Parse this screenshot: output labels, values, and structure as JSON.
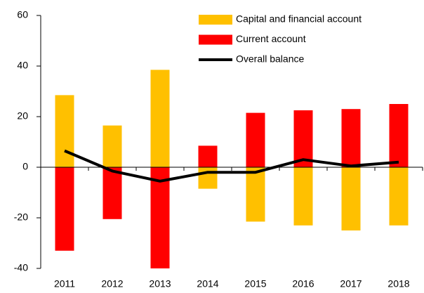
{
  "chart_data": {
    "type": "bar",
    "categories": [
      "2011",
      "2012",
      "2013",
      "2014",
      "2015",
      "2016",
      "2017",
      "2018"
    ],
    "series": [
      {
        "name": "Capital and financial account",
        "color": "#ffc000",
        "values": [
          28.5,
          16.5,
          38.5,
          -8.5,
          -21.5,
          -23,
          -25,
          -23
        ]
      },
      {
        "name": "Current account",
        "color": "#ff0000",
        "values": [
          -33,
          -20.5,
          -40,
          8.5,
          21.5,
          22.5,
          23,
          25
        ]
      },
      {
        "name": "Overall balance",
        "color": "#000000",
        "type": "line",
        "values": [
          6.5,
          -1.5,
          -5.5,
          -2,
          -2,
          3,
          0.5,
          2
        ]
      }
    ],
    "ylim": [
      -40,
      60
    ],
    "yticks": [
      -40,
      -20,
      0,
      20,
      40,
      60
    ],
    "legend": "top-right"
  }
}
